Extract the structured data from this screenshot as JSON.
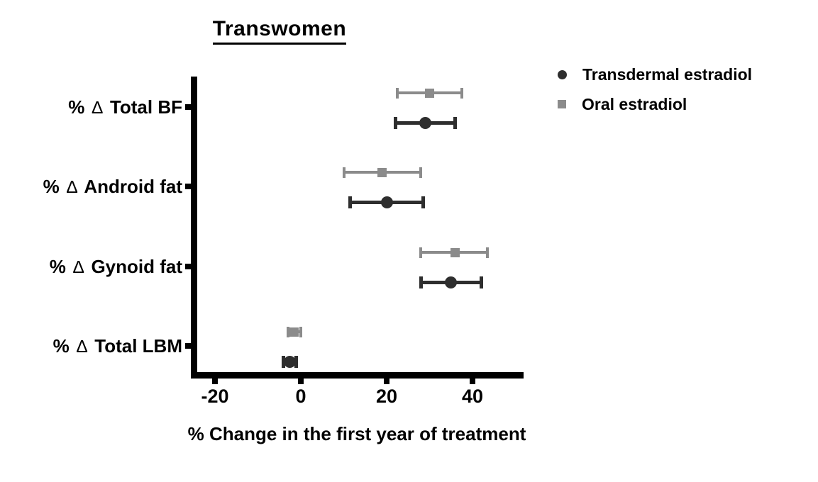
{
  "chart_data": {
    "type": "scatter",
    "title": "Transwomen",
    "xlabel": "% Change in the first year of treatment",
    "categories": [
      "% ∆ Total BF",
      "% ∆ Android fat",
      "% ∆ Gynoid fat",
      "% ∆ Total LBM"
    ],
    "x_ticks": [
      "-20",
      "0",
      "20",
      "40"
    ],
    "x_tick_values": [
      -20,
      0,
      20,
      40
    ],
    "xlim": [
      -25.5,
      51.5
    ],
    "grid": false,
    "legend_position": "top-right",
    "axis_color": "#000000",
    "error_bars": "95% CI",
    "series": [
      {
        "name": "Transdermal estradiol",
        "marker": "circle",
        "color": "#2e2e2e",
        "values": [
          29,
          20,
          35,
          -2.5
        ],
        "ci_low": [
          22,
          11.5,
          28,
          -4
        ],
        "ci_high": [
          36,
          28.5,
          42,
          -1
        ]
      },
      {
        "name": "Oral estradiol",
        "marker": "square",
        "color": "#8b8b8b",
        "values": [
          30,
          19,
          36,
          -1.5
        ],
        "ci_low": [
          22.5,
          10,
          28,
          -3
        ],
        "ci_high": [
          37.5,
          28,
          43.5,
          0
        ]
      }
    ]
  }
}
